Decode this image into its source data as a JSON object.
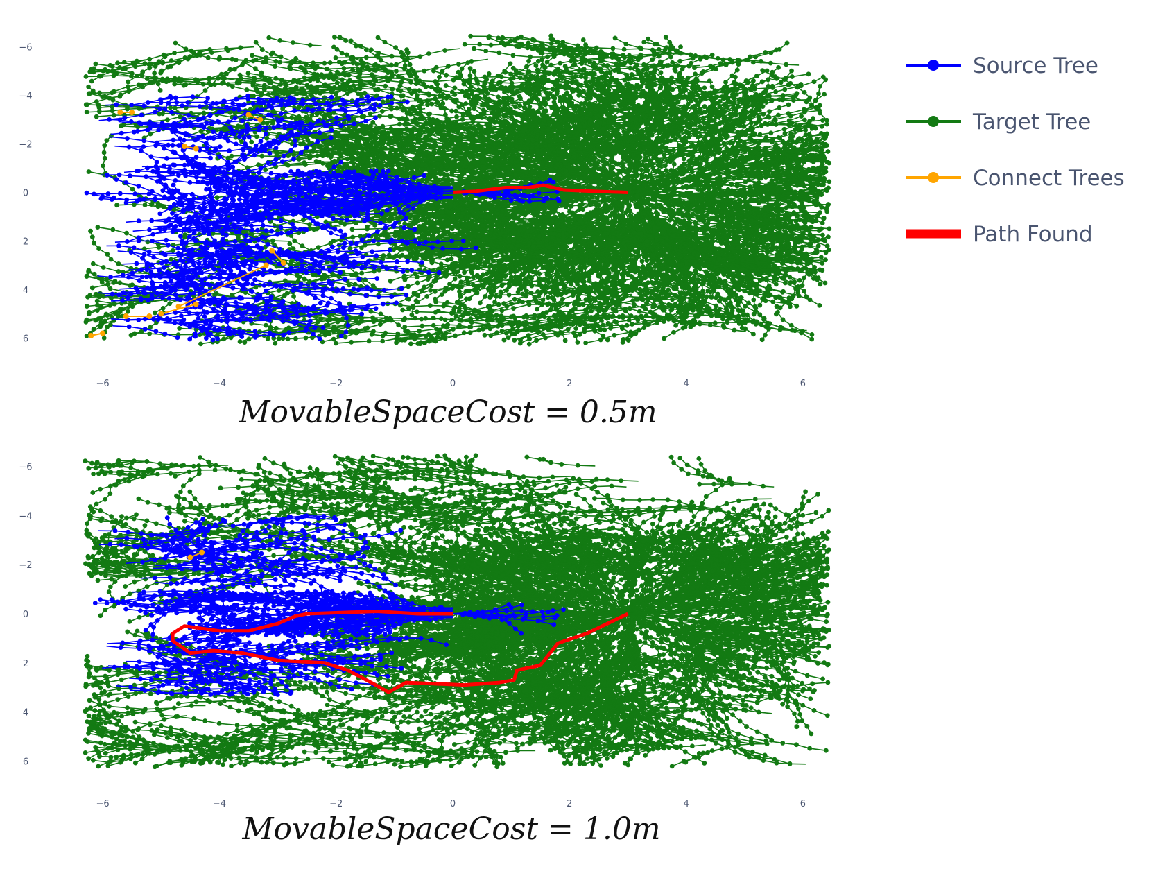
{
  "colors": {
    "source_tree": "#0000ff",
    "target_tree": "#137a13",
    "connect_trees": "#ffa500",
    "path_found": "#ff0000",
    "tick_text": "#4a5570"
  },
  "legend": {
    "placement": "right",
    "items": [
      {
        "label": "Source Tree",
        "style": "line-marker",
        "color": "#0000ff"
      },
      {
        "label": "Target Tree",
        "style": "line-marker",
        "color": "#137a13"
      },
      {
        "label": "Connect Trees",
        "style": "line-marker",
        "color": "#ffa500"
      },
      {
        "label": "Path Found",
        "style": "thick-line",
        "color": "#ff0000"
      }
    ]
  },
  "chart_data": [
    {
      "type": "scatter",
      "caption": "MovableSpaceCost = 0.5m",
      "xlim": [
        -6.5,
        6.5
      ],
      "ylim": [
        -6.5,
        6.5
      ],
      "y_axis_reversed": true,
      "x_ticks": [
        -6,
        -4,
        -2,
        0,
        2,
        4,
        6
      ],
      "y_ticks": [
        -6,
        -4,
        -2,
        0,
        2,
        4,
        6
      ],
      "grid": false,
      "source": [
        0,
        0
      ],
      "target": [
        3,
        0
      ],
      "path_found": [
        [
          0,
          0
        ],
        [
          0.4,
          -0.05
        ],
        [
          0.9,
          -0.2
        ],
        [
          1.3,
          -0.2
        ],
        [
          1.55,
          -0.3
        ],
        [
          1.9,
          -0.1
        ],
        [
          2.4,
          -0.05
        ],
        [
          3,
          0
        ]
      ],
      "connect_trees": [
        [
          -5.7,
          -3.3
        ],
        [
          -5.5,
          -3.3
        ],
        [
          -3.5,
          -3.2
        ],
        [
          -3.3,
          -3.0
        ],
        [
          -4.6,
          -1.9
        ],
        [
          -4.4,
          -1.8
        ],
        [
          -3.1,
          2.4
        ],
        [
          -2.9,
          2.9
        ],
        [
          -3.2,
          3.0
        ],
        [
          -4.7,
          4.7
        ],
        [
          -4.4,
          4.6
        ],
        [
          -5.0,
          5.0
        ],
        [
          -5.6,
          5.1
        ],
        [
          -5.2,
          5.1
        ],
        [
          -6.2,
          5.9
        ],
        [
          -6.0,
          5.8
        ]
      ],
      "series": [
        {
          "name": "Source Tree",
          "color": "#0000ff"
        },
        {
          "name": "Target Tree",
          "color": "#137a13"
        },
        {
          "name": "Connect Trees",
          "color": "#ffa500"
        },
        {
          "name": "Path Found",
          "color": "#ff0000"
        }
      ]
    },
    {
      "type": "scatter",
      "caption": "MovableSpaceCost = 1.0m",
      "xlim": [
        -6.5,
        6.5
      ],
      "ylim": [
        -6.5,
        6.5
      ],
      "y_axis_reversed": true,
      "x_ticks": [
        -6,
        -4,
        -2,
        0,
        2,
        4,
        6
      ],
      "y_ticks": [
        -6,
        -4,
        -2,
        0,
        2,
        4,
        6
      ],
      "grid": false,
      "source": [
        0,
        0
      ],
      "target": [
        3,
        0
      ],
      "path_found": [
        [
          0,
          0
        ],
        [
          -0.6,
          0.0
        ],
        [
          -1.3,
          -0.1
        ],
        [
          -2.5,
          0.0
        ],
        [
          -2.7,
          0.1
        ],
        [
          -3.0,
          0.4
        ],
        [
          -3.5,
          0.7
        ],
        [
          -4.0,
          0.7
        ],
        [
          -4.6,
          0.5
        ],
        [
          -4.8,
          0.8
        ],
        [
          -4.8,
          1.1
        ],
        [
          -4.5,
          1.6
        ],
        [
          -4.1,
          1.5
        ],
        [
          -3.6,
          1.6
        ],
        [
          -3.0,
          1.9
        ],
        [
          -2.2,
          2.0
        ],
        [
          -1.8,
          2.3
        ],
        [
          -1.4,
          2.8
        ],
        [
          -1.1,
          3.2
        ],
        [
          -0.8,
          2.8
        ],
        [
          0.2,
          2.9
        ],
        [
          0.8,
          2.8
        ],
        [
          1.05,
          2.7
        ],
        [
          1.1,
          2.3
        ],
        [
          1.5,
          2.1
        ],
        [
          1.8,
          1.2
        ],
        [
          2.3,
          0.8
        ],
        [
          3,
          0
        ]
      ],
      "connect_trees": [
        [
          -4.5,
          -2.3
        ],
        [
          -4.3,
          -2.5
        ]
      ],
      "series": [
        {
          "name": "Source Tree",
          "color": "#0000ff"
        },
        {
          "name": "Target Tree",
          "color": "#137a13"
        },
        {
          "name": "Connect Trees",
          "color": "#ffa500"
        },
        {
          "name": "Path Found",
          "color": "#ff0000"
        }
      ]
    }
  ]
}
